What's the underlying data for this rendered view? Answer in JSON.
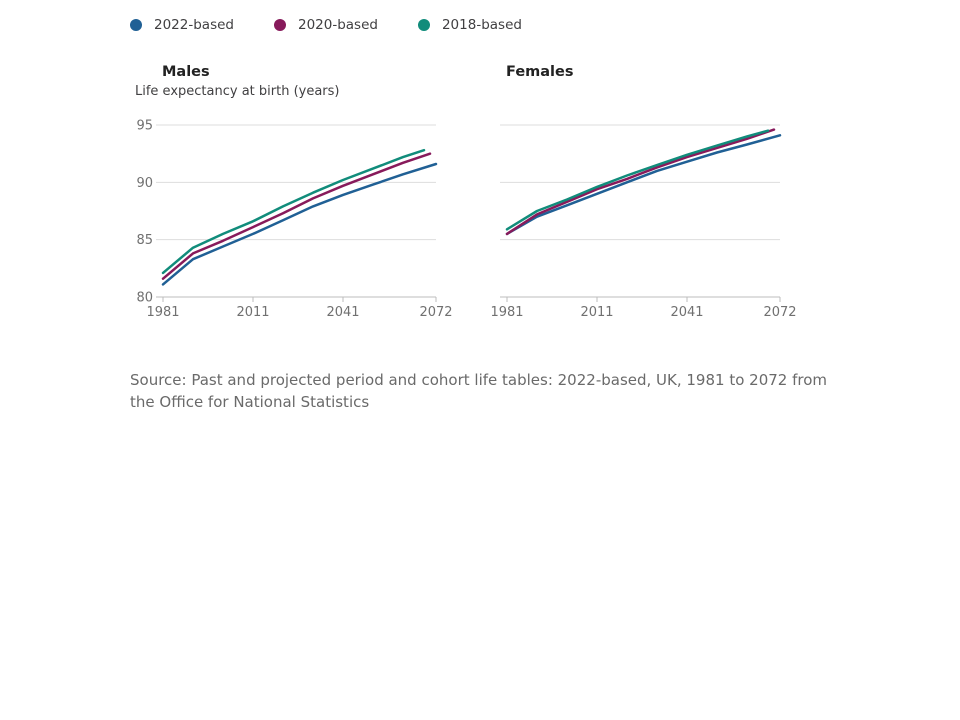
{
  "legend": {
    "items": [
      {
        "label": "2022-based",
        "color": "#206095"
      },
      {
        "label": "2020-based",
        "color": "#871a5b"
      },
      {
        "label": "2018-based",
        "color": "#118c7b"
      }
    ]
  },
  "panels": {
    "males_title": "Males",
    "females_title": "Females",
    "ylabel": "Life expectancy at birth (years)"
  },
  "source": "Source: Past and projected period and cohort life tables: 2022-based, UK, 1981 to 2072 from the Office for National Statistics",
  "chart_data": [
    {
      "type": "line",
      "title": "Males",
      "ylabel": "Life expectancy at birth (years)",
      "xlim": [
        1981,
        2072
      ],
      "ylim": [
        80,
        95
      ],
      "x_ticks": [
        1981,
        2011,
        2041,
        2072
      ],
      "y_ticks": [
        80,
        85,
        90,
        95
      ],
      "grid": true,
      "series": [
        {
          "name": "2022-based",
          "color": "#206095",
          "x": [
            1981,
            1991,
            2001,
            2011,
            2021,
            2031,
            2041,
            2051,
            2061,
            2072
          ],
          "y": [
            81.1,
            83.3,
            84.4,
            85.5,
            86.7,
            87.9,
            88.9,
            89.8,
            90.7,
            91.6
          ]
        },
        {
          "name": "2020-based",
          "color": "#871a5b",
          "x": [
            1981,
            1991,
            2001,
            2011,
            2021,
            2031,
            2041,
            2051,
            2061,
            2070
          ],
          "y": [
            81.6,
            83.8,
            84.9,
            86.1,
            87.3,
            88.6,
            89.7,
            90.7,
            91.7,
            92.5
          ]
        },
        {
          "name": "2018-based",
          "color": "#118c7b",
          "x": [
            1981,
            1991,
            2001,
            2011,
            2021,
            2031,
            2041,
            2051,
            2061,
            2068
          ],
          "y": [
            82.1,
            84.3,
            85.5,
            86.6,
            87.9,
            89.1,
            90.2,
            91.2,
            92.2,
            92.8
          ]
        }
      ]
    },
    {
      "type": "line",
      "title": "Females",
      "xlim": [
        1981,
        2072
      ],
      "ylim": [
        80,
        95
      ],
      "x_ticks": [
        1981,
        2011,
        2041,
        2072
      ],
      "y_ticks": [
        80,
        85,
        90,
        95
      ],
      "grid": true,
      "series": [
        {
          "name": "2022-based",
          "color": "#206095",
          "x": [
            1981,
            1991,
            2001,
            2011,
            2021,
            2031,
            2041,
            2051,
            2061,
            2072
          ],
          "y": [
            85.5,
            87.0,
            88.0,
            89.0,
            90.0,
            91.0,
            91.8,
            92.6,
            93.3,
            94.1
          ]
        },
        {
          "name": "2020-based",
          "color": "#871a5b",
          "x": [
            1981,
            1991,
            2001,
            2011,
            2021,
            2031,
            2041,
            2051,
            2061,
            2070
          ],
          "y": [
            85.5,
            87.2,
            88.3,
            89.4,
            90.3,
            91.3,
            92.2,
            93.0,
            93.8,
            94.6
          ]
        },
        {
          "name": "2018-based",
          "color": "#118c7b",
          "x": [
            1981,
            1991,
            2001,
            2011,
            2021,
            2031,
            2041,
            2051,
            2061,
            2068
          ],
          "y": [
            85.9,
            87.5,
            88.5,
            89.6,
            90.6,
            91.5,
            92.4,
            93.2,
            94.0,
            94.5
          ]
        }
      ]
    }
  ]
}
